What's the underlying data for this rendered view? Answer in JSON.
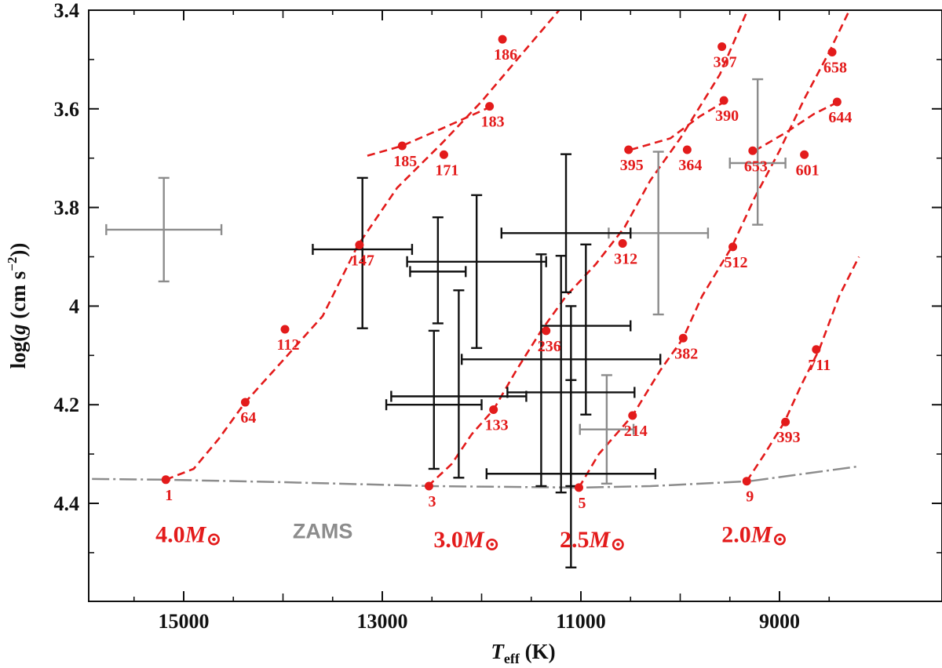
{
  "chart_data": {
    "type": "scatter",
    "xlabel": {
      "main": "T",
      "sub": "eff",
      "unit": " (K)"
    },
    "ylabel": {
      "pre": "log(",
      "var": "g",
      "mid": " (cm s",
      "sup": "−2",
      "post": "))"
    },
    "xlim": [
      16200,
      8200
    ],
    "ylim": [
      4.58,
      3.4
    ],
    "x_reversed": true,
    "y_reversed": true,
    "x_ticks": [
      15000,
      13000,
      11000,
      9000
    ],
    "x_minor_step": 500,
    "y_ticks": [
      3.4,
      3.6,
      3.8,
      4.0,
      4.2,
      4.4
    ],
    "y_tick_labels": [
      "3.4",
      "3.6",
      "3.8",
      "4",
      "4.2",
      "4.4"
    ],
    "y_minor_step": 0.1,
    "zams": {
      "label": "ZAMS",
      "color": "#8c8c8c",
      "points": [
        [
          16200,
          4.35
        ],
        [
          15200,
          4.352
        ],
        [
          14000,
          4.357
        ],
        [
          12500,
          4.365
        ],
        [
          11000,
          4.368
        ],
        [
          10300,
          4.365
        ],
        [
          9300,
          4.355
        ],
        [
          8200,
          4.325
        ]
      ]
    },
    "tracks": [
      {
        "mass_label": "4.0",
        "mass_unit": "M",
        "mass_symbol": "⊙",
        "color": "#e31b1b",
        "line": [
          [
            15180,
            4.352
          ],
          [
            14900,
            4.33
          ],
          [
            14650,
            4.27
          ],
          [
            14380,
            4.195
          ],
          [
            14000,
            4.11
          ],
          [
            13600,
            4.02
          ],
          [
            13250,
            3.878
          ],
          [
            12850,
            3.76
          ],
          [
            12400,
            3.67
          ],
          [
            12000,
            3.585
          ],
          [
            11600,
            3.49
          ],
          [
            11050,
            3.36
          ]
        ],
        "points": [
          {
            "label": "1",
            "x": 15180,
            "y": 4.352
          },
          {
            "label": "64",
            "x": 14380,
            "y": 4.195
          },
          {
            "label": "112",
            "x": 13980,
            "y": 4.047
          },
          {
            "label": "147",
            "x": 13230,
            "y": 3.876
          },
          {
            "label": "171",
            "x": 12380,
            "y": 3.693
          },
          {
            "label": "186",
            "x": 11790,
            "y": 3.459
          }
        ],
        "loop": [
          [
            13150,
            3.695
          ],
          [
            12800,
            3.675
          ],
          [
            12400,
            3.64
          ],
          [
            11900,
            3.595
          ]
        ],
        "loop_points": [
          {
            "label": "185",
            "x": 12800,
            "y": 3.675
          },
          {
            "label": "183",
            "x": 11920,
            "y": 3.595
          }
        ]
      },
      {
        "mass_label": "3.0",
        "mass_unit": "M",
        "mass_symbol": "⊙",
        "color": "#e31b1b",
        "line": [
          [
            12540,
            4.365
          ],
          [
            12300,
            4.32
          ],
          [
            12100,
            4.26
          ],
          [
            11880,
            4.21
          ],
          [
            11650,
            4.13
          ],
          [
            11400,
            4.05
          ],
          [
            11150,
            3.98
          ],
          [
            10850,
            3.915
          ],
          [
            10560,
            3.84
          ],
          [
            10300,
            3.745
          ],
          [
            10000,
            3.66
          ],
          [
            9600,
            3.53
          ],
          [
            9300,
            3.39
          ]
        ],
        "points": [
          {
            "label": "3",
            "x": 12530,
            "y": 4.365
          },
          {
            "label": "133",
            "x": 11880,
            "y": 4.21
          },
          {
            "label": "236",
            "x": 11350,
            "y": 4.05
          },
          {
            "label": "312",
            "x": 10580,
            "y": 3.873
          },
          {
            "label": "395",
            "x": 10520,
            "y": 3.683
          },
          {
            "label": "397",
            "x": 9580,
            "y": 3.474
          }
        ],
        "loop": [
          [
            10500,
            3.683
          ],
          [
            10100,
            3.66
          ],
          [
            9800,
            3.615
          ],
          [
            9550,
            3.585
          ]
        ],
        "loop_points": [
          {
            "label": "390",
            "x": 9560,
            "y": 3.583
          },
          {
            "label": "364",
            "x": 9930,
            "y": 3.683
          }
        ]
      },
      {
        "mass_label": "2.5",
        "mass_unit": "M",
        "mass_symbol": "⊙",
        "color": "#e31b1b",
        "line": [
          [
            11020,
            4.368
          ],
          [
            10820,
            4.3
          ],
          [
            10480,
            4.222
          ],
          [
            10200,
            4.13
          ],
          [
            9970,
            4.065
          ],
          [
            9780,
            3.98
          ],
          [
            9480,
            3.88
          ],
          [
            9250,
            3.78
          ],
          [
            9000,
            3.685
          ],
          [
            8750,
            3.58
          ],
          [
            8500,
            3.485
          ],
          [
            8200,
            3.36
          ]
        ],
        "points": [
          {
            "label": "5",
            "x": 11020,
            "y": 4.368
          },
          {
            "label": "214",
            "x": 10480,
            "y": 4.222
          },
          {
            "label": "382",
            "x": 9970,
            "y": 4.065
          },
          {
            "label": "512",
            "x": 9470,
            "y": 3.88
          },
          {
            "label": "653",
            "x": 9270,
            "y": 3.685
          },
          {
            "label": "658",
            "x": 8470,
            "y": 3.485
          }
        ],
        "loop": [
          [
            9250,
            3.685
          ],
          [
            8950,
            3.65
          ],
          [
            8650,
            3.61
          ],
          [
            8400,
            3.585
          ]
        ],
        "loop_points": [
          {
            "label": "644",
            "x": 8420,
            "y": 3.586
          },
          {
            "label": "601",
            "x": 8750,
            "y": 3.693
          }
        ]
      },
      {
        "mass_label": "2.0",
        "mass_unit": "M",
        "mass_symbol": "⊙",
        "color": "#e31b1b",
        "line": [
          [
            9330,
            4.355
          ],
          [
            9150,
            4.3
          ],
          [
            8950,
            4.235
          ],
          [
            8780,
            4.16
          ],
          [
            8600,
            4.088
          ],
          [
            8400,
            3.98
          ],
          [
            8200,
            3.9
          ]
        ],
        "points": [
          {
            "label": "9",
            "x": 9330,
            "y": 4.355
          },
          {
            "label": "393",
            "x": 8940,
            "y": 4.235
          },
          {
            "label": "711",
            "x": 8630,
            "y": 4.088
          }
        ],
        "loop": [],
        "loop_points": []
      }
    ],
    "stars_black": [
      {
        "x": 13200,
        "y": 3.885,
        "xerr": 500,
        "yerr": [
          0.145,
          0.16
        ]
      },
      {
        "x": 12440,
        "y": 3.93,
        "xerr": 280,
        "yerr": [
          0.11,
          0.105
        ]
      },
      {
        "x": 12050,
        "y": 3.91,
        "xerr": 700,
        "yerr": [
          0.135,
          0.175
        ]
      },
      {
        "x": 12480,
        "y": 4.2,
        "xerr": 480,
        "yerr": [
          0.15,
          0.13
        ]
      },
      {
        "x": 12230,
        "y": 4.183,
        "xerr": 680,
        "yerr": [
          0.215,
          0.165
        ]
      },
      {
        "x": 11150,
        "y": 3.852,
        "xerr": 650,
        "yerr": [
          0.16,
          0.12
        ]
      },
      {
        "x": 11200,
        "y": 4.108,
        "xerr": 1000,
        "yerr": [
          0.21,
          0.27
        ]
      },
      {
        "x": 10950,
        "y": 4.04,
        "xerr": 450,
        "yerr": [
          0.165,
          0.18
        ]
      },
      {
        "x": 11100,
        "y": 4.175,
        "xerr": 640,
        "yerr": [
          0.175,
          0.19
        ]
      },
      {
        "x": 11400,
        "y": 4.13,
        "xerr": 0,
        "yerr": [
          0.235,
          0.235
        ]
      },
      {
        "x": 11100,
        "y": 4.34,
        "xerr": 850,
        "yerr": [
          0.19,
          0.19
        ]
      }
    ],
    "stars_gray": [
      {
        "x": 15200,
        "y": 3.845,
        "xerr": 580,
        "yerr": [
          0.105,
          0.105
        ]
      },
      {
        "x": 10220,
        "y": 3.852,
        "xerr": 500,
        "yerr": [
          0.165,
          0.165
        ]
      },
      {
        "x": 9220,
        "y": 3.71,
        "xerr": 280,
        "yerr": [
          0.17,
          0.125
        ]
      },
      {
        "x": 10740,
        "y": 4.25,
        "xerr": 270,
        "yerr": [
          0.11,
          0.11
        ]
      }
    ],
    "zams_label_pos": {
      "x": 13600,
      "y": 4.455
    },
    "mass_label_pos": [
      {
        "x": 14950,
        "y": 4.46
      },
      {
        "x": 12150,
        "y": 4.47
      },
      {
        "x": 10880,
        "y": 4.47
      },
      {
        "x": 9250,
        "y": 4.46
      }
    ],
    "colors": {
      "track": "#e31b1b",
      "errorbar": "#111111",
      "errorbar_gray": "#8c8c8c",
      "zams": "#8c8c8c"
    }
  }
}
